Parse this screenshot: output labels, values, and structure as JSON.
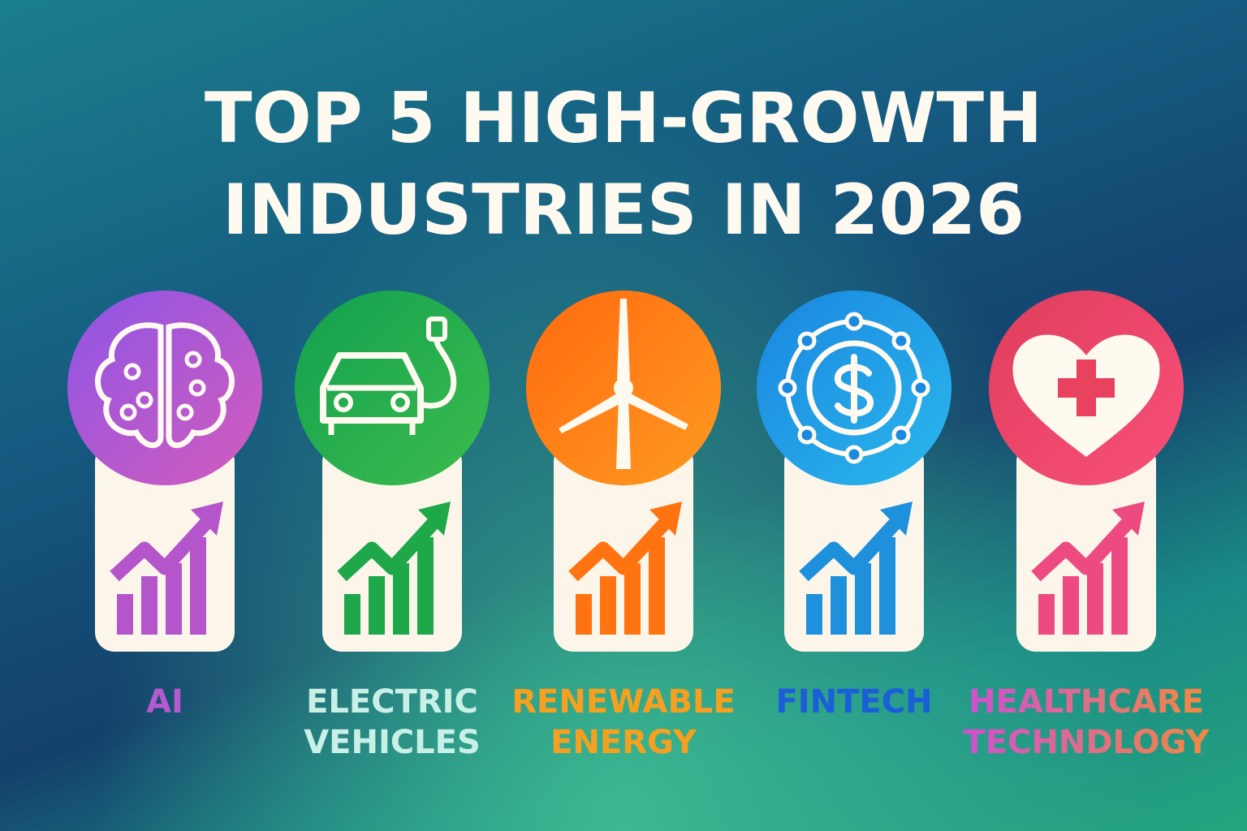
{
  "header": {
    "title_lines": [
      "TOP 5 HIGH-GROWTH",
      "INDUSTRIES IN 2026"
    ]
  },
  "items": [
    {
      "label_lines": [
        "AI"
      ]
    },
    {
      "label_lines": [
        "ELECTRIC",
        "VEHICLES"
      ]
    },
    {
      "label_lines": [
        "RENEWABLE",
        "ENERGY"
      ]
    },
    {
      "label_lines": [
        "FINTECH"
      ]
    },
    {
      "label_lines": [
        "HEALTHCARE",
        "TECHNDLOGY"
      ]
    }
  ]
}
